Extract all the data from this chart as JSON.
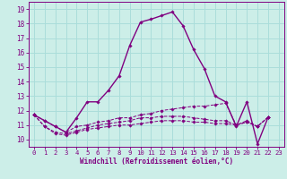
{
  "xlabel": "Windchill (Refroidissement éolien,°C)",
  "bg_color": "#cceee8",
  "grid_color": "#aaddda",
  "line_color": "#800080",
  "xlim": [
    -0.5,
    23.5
  ],
  "ylim": [
    9.5,
    19.5
  ],
  "yticks": [
    10,
    11,
    12,
    13,
    14,
    15,
    16,
    17,
    18,
    19
  ],
  "xticks": [
    0,
    1,
    2,
    3,
    4,
    5,
    6,
    7,
    8,
    9,
    10,
    11,
    12,
    13,
    14,
    15,
    16,
    17,
    18,
    19,
    20,
    21,
    22,
    23
  ],
  "series": [
    {
      "x": [
        0,
        1,
        2,
        3,
        4,
        5,
        6,
        7,
        8,
        9,
        10,
        11,
        12,
        13,
        14,
        15,
        16,
        17,
        18,
        19,
        20,
        21,
        22
      ],
      "y": [
        11.7,
        11.3,
        10.9,
        10.5,
        11.5,
        12.6,
        12.6,
        13.4,
        14.4,
        16.5,
        18.1,
        18.3,
        18.55,
        18.8,
        17.85,
        16.2,
        14.9,
        13.0,
        12.6,
        10.9,
        12.6,
        9.7,
        11.55
      ],
      "ls": "-",
      "lw": 1.0
    },
    {
      "x": [
        0,
        1,
        2,
        3,
        4,
        5,
        6,
        7,
        8,
        9,
        10,
        11,
        12,
        13,
        14,
        15,
        16,
        17,
        18,
        19,
        20,
        21,
        22
      ],
      "y": [
        11.7,
        11.3,
        10.9,
        10.5,
        10.9,
        11.0,
        11.2,
        11.3,
        11.5,
        11.5,
        11.7,
        11.8,
        12.0,
        12.1,
        12.2,
        12.3,
        12.3,
        12.4,
        12.5,
        11.0,
        11.3,
        10.9,
        11.55
      ],
      "ls": "--",
      "lw": 0.7
    },
    {
      "x": [
        0,
        1,
        2,
        3,
        4,
        5,
        6,
        7,
        8,
        9,
        10,
        11,
        12,
        13,
        14,
        15,
        16,
        17,
        18,
        19,
        20,
        21,
        22
      ],
      "y": [
        11.7,
        10.9,
        10.5,
        10.4,
        10.6,
        10.8,
        11.0,
        11.1,
        11.2,
        11.3,
        11.5,
        11.5,
        11.6,
        11.6,
        11.6,
        11.5,
        11.4,
        11.3,
        11.3,
        11.0,
        11.2,
        10.9,
        11.55
      ],
      "ls": "--",
      "lw": 0.7
    },
    {
      "x": [
        0,
        1,
        2,
        3,
        4,
        5,
        6,
        7,
        8,
        9,
        10,
        11,
        12,
        13,
        14,
        15,
        16,
        17,
        18,
        19,
        20,
        21,
        22
      ],
      "y": [
        11.7,
        10.9,
        10.4,
        10.3,
        10.5,
        10.7,
        10.8,
        10.9,
        11.0,
        11.0,
        11.1,
        11.2,
        11.3,
        11.3,
        11.3,
        11.2,
        11.2,
        11.1,
        11.1,
        11.0,
        11.2,
        10.9,
        11.55
      ],
      "ls": "--",
      "lw": 0.7
    }
  ]
}
